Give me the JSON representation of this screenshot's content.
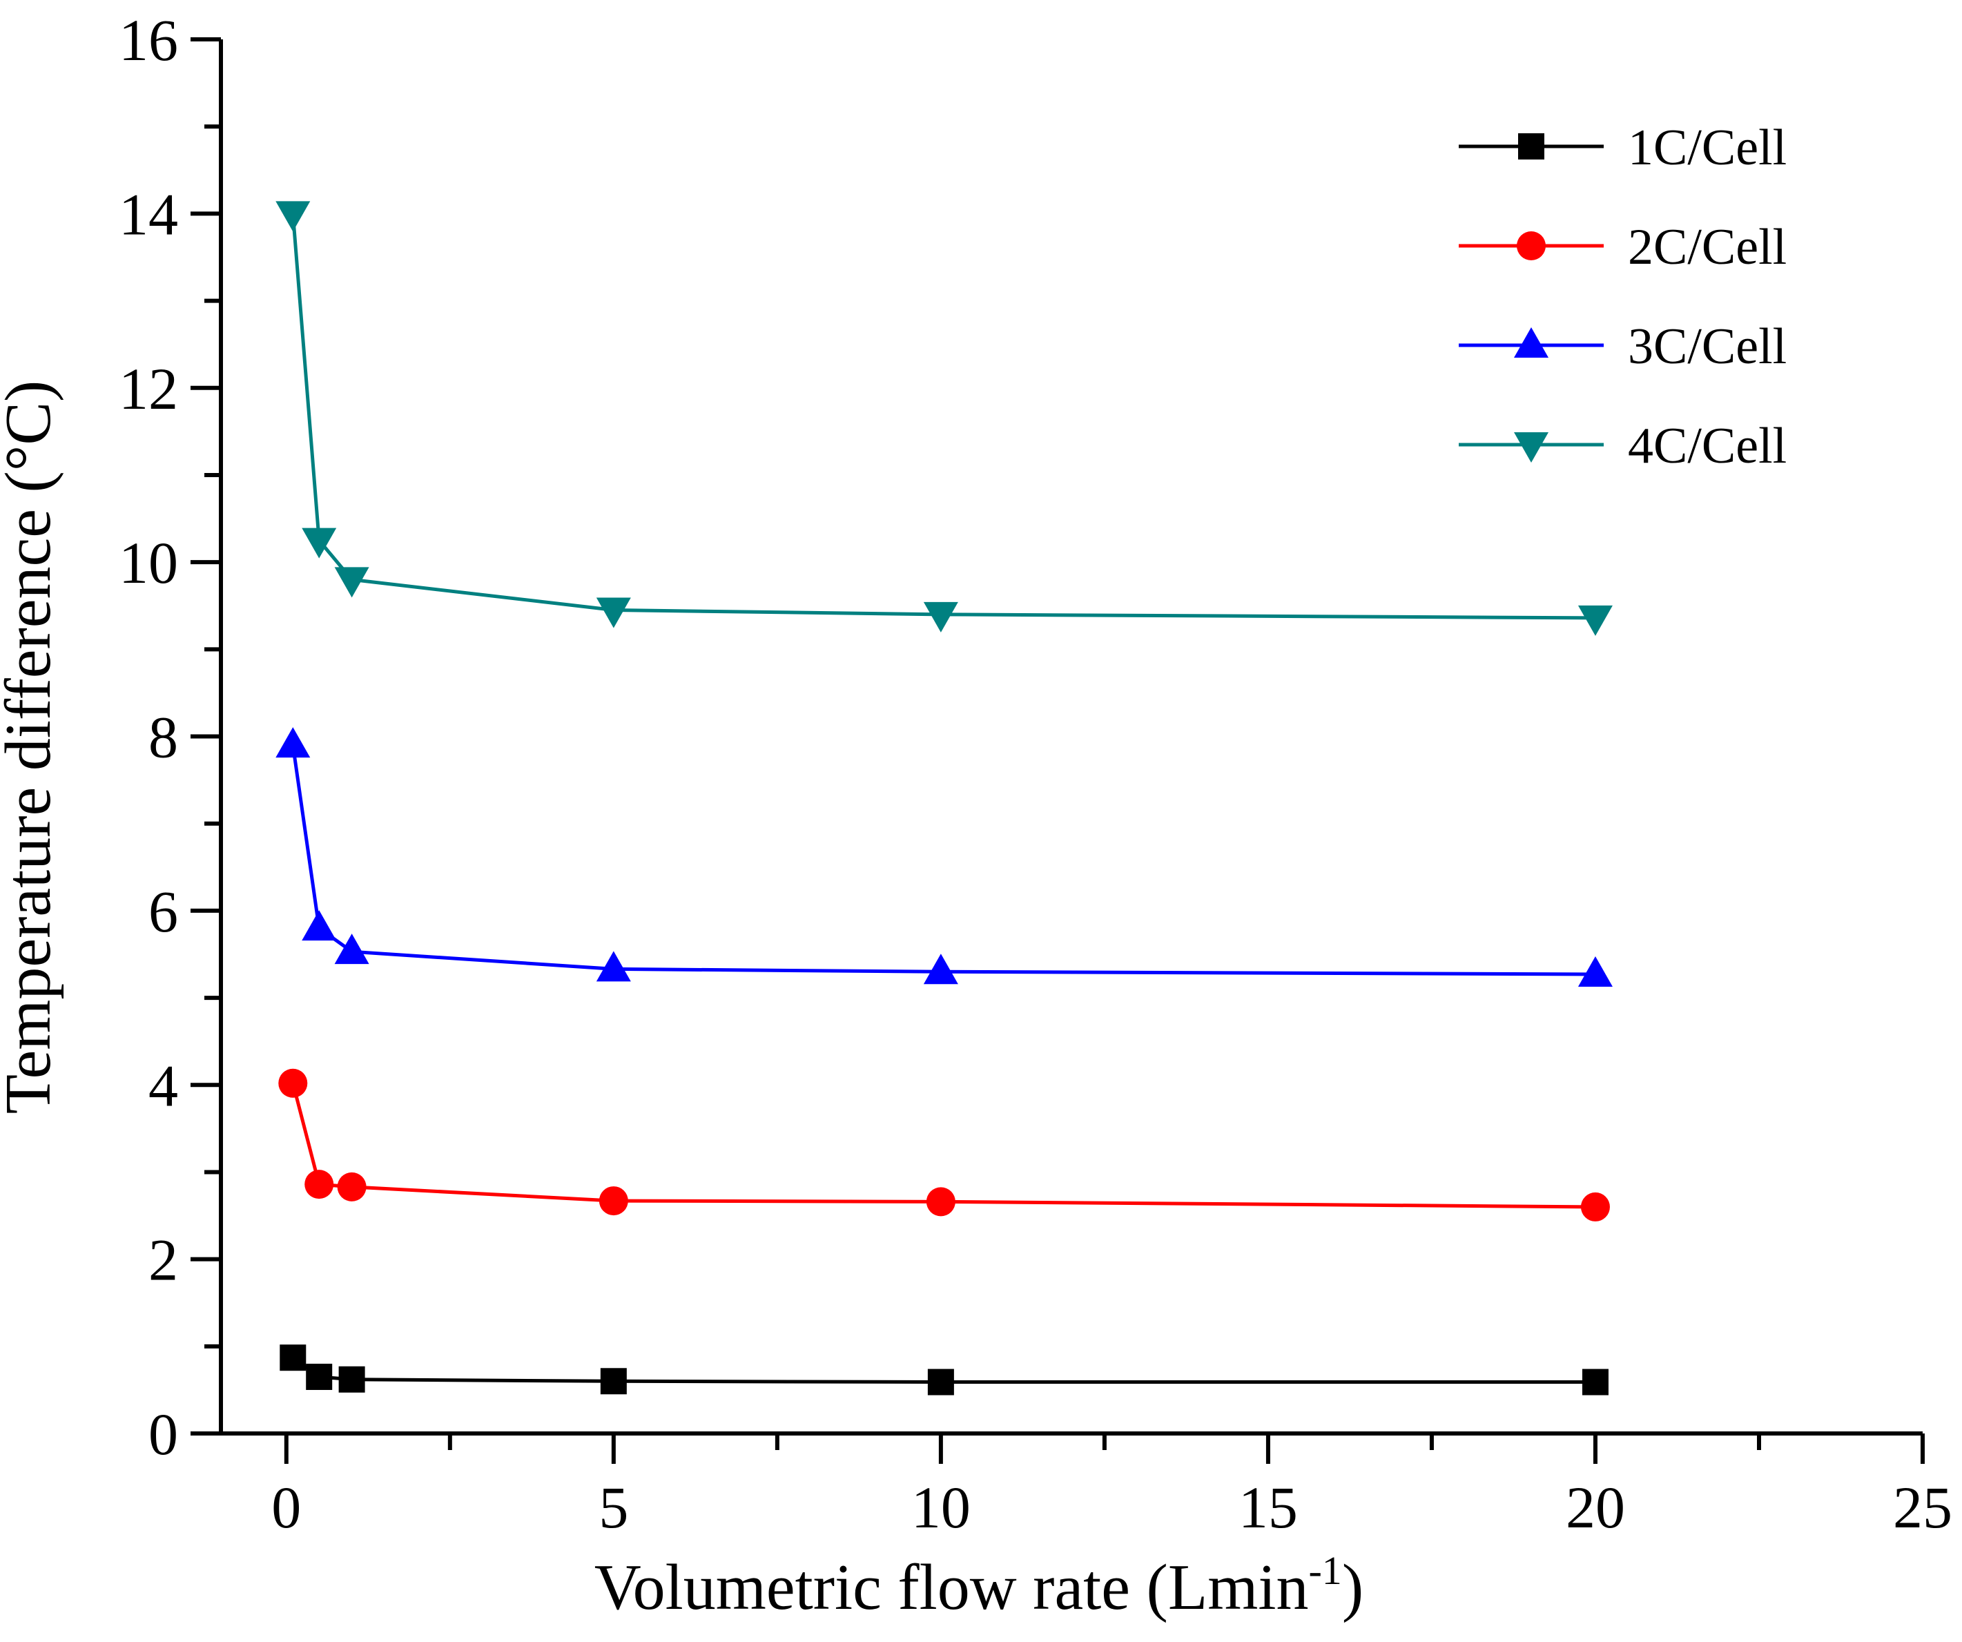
{
  "chart_data": {
    "type": "line",
    "title": "",
    "xlabel": "Volumetric flow rate (Lmin",
    "xlabel_sup": "-1",
    "xlabel_suffix": ")",
    "ylabel": "Temperature difference (°C)",
    "xlim": [
      -1,
      25
    ],
    "ylim": [
      0,
      16
    ],
    "xticks": [
      0,
      5,
      10,
      15,
      20,
      25
    ],
    "yticks": [
      0,
      2,
      4,
      6,
      8,
      10,
      12,
      14,
      16
    ],
    "xtick_labels": [
      "0",
      "5",
      "10",
      "15",
      "20",
      "25"
    ],
    "ytick_labels": [
      "0",
      "2",
      "4",
      "6",
      "8",
      "10",
      "12",
      "14",
      "16"
    ],
    "grid": false,
    "legend_position": "top-right",
    "x": [
      0.1,
      0.5,
      1,
      5,
      10,
      20
    ],
    "series": [
      {
        "name": "1C/Cell",
        "color": "#000000",
        "marker": "square",
        "values": [
          0.87,
          0.65,
          0.62,
          0.6,
          0.59,
          0.59
        ]
      },
      {
        "name": "2C/Cell",
        "color": "#ff0000",
        "marker": "circle",
        "values": [
          4.02,
          2.86,
          2.83,
          2.67,
          2.66,
          2.6
        ]
      },
      {
        "name": "3C/Cell",
        "color": "#0000ff",
        "marker": "triangle-up",
        "values": [
          7.9,
          5.8,
          5.53,
          5.33,
          5.3,
          5.27
        ]
      },
      {
        "name": "4C/Cell",
        "color": "#008080",
        "marker": "triangle-down",
        "values": [
          14.0,
          10.25,
          9.8,
          9.45,
          9.4,
          9.36
        ]
      }
    ]
  }
}
